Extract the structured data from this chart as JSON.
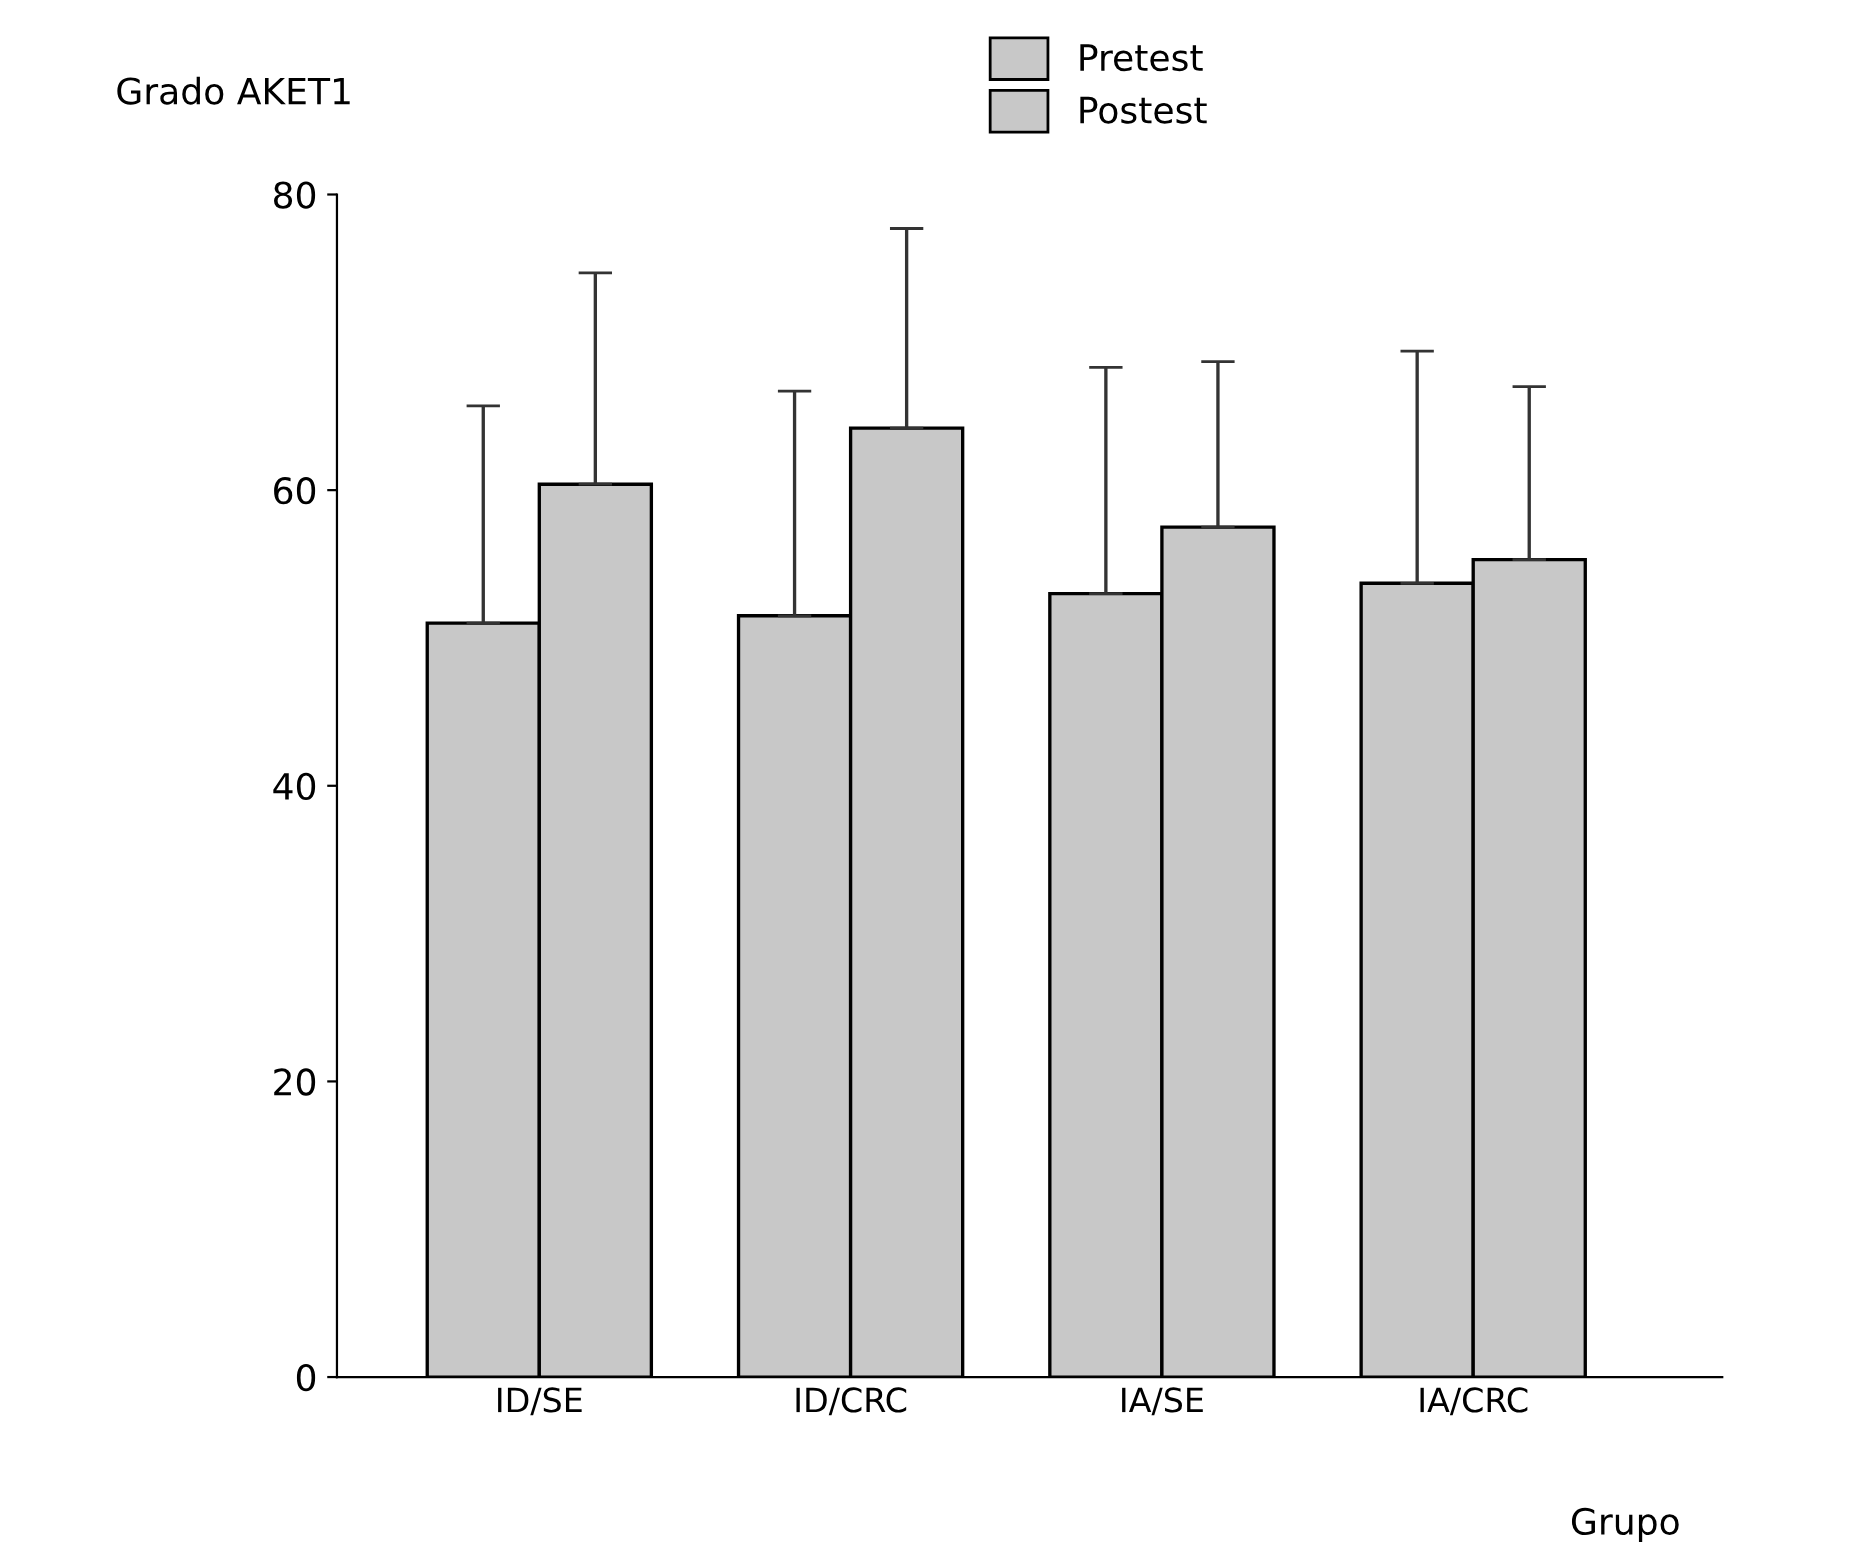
{
  "chart_data": {
    "type": "bar",
    "ylabel": "Grado AKET1",
    "xlabel": "Grupo",
    "categories": [
      "ID/SE",
      "ID/CRC",
      "IA/SE",
      "IA/CRC"
    ],
    "series": [
      {
        "name": "Pretest",
        "color": "#c8c8c8",
        "values": [
          51,
          51.5,
          53,
          53.7
        ],
        "errors": [
          [
            51,
            65.7
          ],
          [
            51.5,
            66.7
          ],
          [
            53,
            68.3
          ],
          [
            53.7,
            69.4
          ]
        ]
      },
      {
        "name": "Postest",
        "color": "#c8c8c8",
        "values": [
          60.4,
          64.2,
          57.5,
          55.3
        ],
        "errors": [
          [
            60.4,
            74.7
          ],
          [
            64.2,
            77.7
          ],
          [
            57.5,
            68.7
          ],
          [
            55.3,
            67
          ]
        ]
      }
    ],
    "ylim": [
      0,
      80
    ],
    "yticks": [
      0,
      20,
      40,
      60,
      80
    ],
    "grid": false,
    "legend": "top"
  }
}
